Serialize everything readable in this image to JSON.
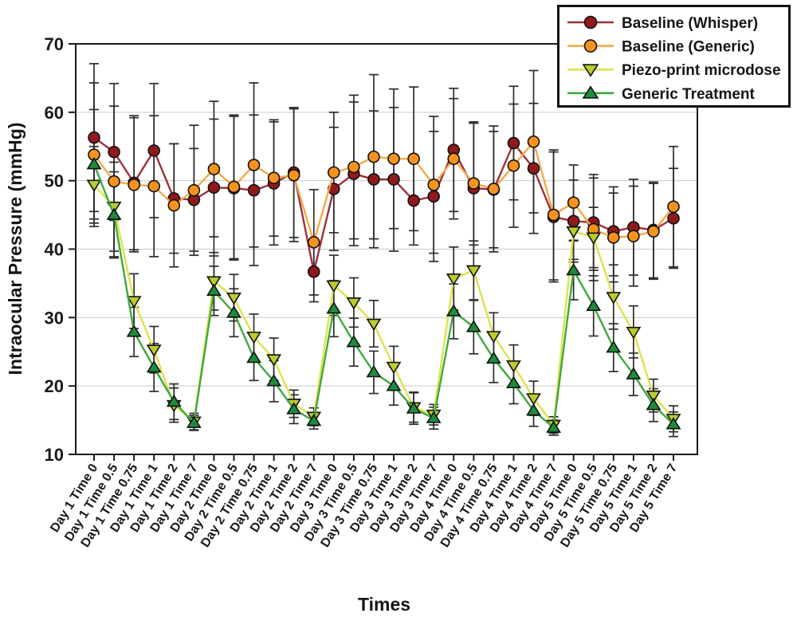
{
  "chart_data": {
    "type": "line",
    "title": "",
    "xlabel": "Times",
    "ylabel": "Intraocular Pressure (mmHg)",
    "ylim": [
      10,
      70
    ],
    "y_ticks": [
      10,
      20,
      30,
      40,
      50,
      60,
      70
    ],
    "grid": "horizontal",
    "legend_position": "top-right",
    "error_bar_color": "#2d2d2d",
    "categories": [
      "Day 1 Time 0",
      "Day 1 Time 0.5",
      "Day 1 Time 0.75",
      "Day 1 Time 1",
      "Day 1 Time 2",
      "Day 1 Time 7",
      "Day 2 Time 0",
      "Day 2 Time 0.5",
      "Day 2 Time 0.75",
      "Day 2 Time 1",
      "Day 2 Time 2",
      "Day 2 Time 7",
      "Day 3 Time 0",
      "Day 3 Time 0.5",
      "Day 3 Time 0.75",
      "Day 3 Time 1",
      "Day 3 Time 2",
      "Day 3 Time 7",
      "Day 4 Time 0",
      "Day 4 Time 0.5",
      "Day 4 Time 0.75",
      "Day 4 Time 1",
      "Day 4 Time 2",
      "Day 4 Time 7",
      "Day 5 Time 0",
      "Day 5 Time 0.5",
      "Day 5 Time 0.75",
      "Day 5 Time 1",
      "Day 5 Time 2",
      "Day 5 Time 7"
    ],
    "series": [
      {
        "name": "Baseline (Whisper)",
        "marker": "circle",
        "marker_color": "#8f1a1c",
        "line_color": "#9e3039",
        "values": [
          56.3,
          54.2,
          49.7,
          54.4,
          47.4,
          47.2,
          49.0,
          48.9,
          48.6,
          49.6,
          51.2,
          36.7,
          48.8,
          51.0,
          50.2,
          50.2,
          47.1,
          47.7,
          54.5,
          48.9,
          48.7,
          55.5,
          51.8,
          44.7,
          44.1,
          43.9,
          42.6,
          43.2,
          42.8,
          44.5
        ],
        "errors": [
          10.8,
          10.0,
          9.8,
          9.8,
          8.0,
          7.5,
          10.0,
          10.5,
          11.0,
          9.0,
          9.5,
          4.4,
          9.0,
          10.5,
          10.0,
          10.5,
          6.5,
          9.5,
          9.0,
          9.5,
          8.5,
          8.3,
          9.5,
          9.5,
          6.0,
          7.0,
          6.5,
          7.0,
          7.0,
          7.3
        ]
      },
      {
        "name": "Baseline (Generic)",
        "marker": "circle",
        "marker_color": "#f6921e",
        "line_color": "#f4a94c",
        "values": [
          53.8,
          49.9,
          49.4,
          49.2,
          46.4,
          48.6,
          51.7,
          49.1,
          52.3,
          50.4,
          50.8,
          41.0,
          51.2,
          52.0,
          53.5,
          53.2,
          53.2,
          49.4,
          53.2,
          49.6,
          48.8,
          52.2,
          55.7,
          45.0,
          46.8,
          42.9,
          41.7,
          41.9,
          42.6,
          46.2
        ],
        "errors": [
          10.5,
          11.0,
          9.8,
          10.3,
          9.0,
          9.5,
          9.9,
          10.5,
          12.0,
          8.5,
          9.7,
          7.7,
          8.8,
          10.5,
          12.0,
          10.2,
          10.5,
          10.0,
          8.8,
          9.0,
          9.2,
          9.0,
          10.4,
          9.5,
          5.5,
          7.5,
          6.5,
          7.3,
          7.0,
          8.8
        ]
      },
      {
        "name": "Piezo-print microdose",
        "marker": "triangle-down",
        "marker_color": "#bccb2f",
        "line_color": "#dee24a",
        "values": [
          49.4,
          46.2,
          32.4,
          25.3,
          17.2,
          14.8,
          35.3,
          32.9,
          27.2,
          23.9,
          17.4,
          15.5,
          34.7,
          32.2,
          29.1,
          22.8,
          16.9,
          15.8,
          35.7,
          36.9,
          27.3,
          23.0,
          18.2,
          14.3,
          42.6,
          41.7,
          33.0,
          27.9,
          18.6,
          15.2
        ],
        "errors": [
          5.6,
          6.5,
          4.0,
          3.4,
          2.5,
          1.2,
          4.2,
          3.4,
          3.3,
          3.1,
          2.0,
          1.3,
          4.4,
          3.6,
          3.4,
          3.0,
          2.2,
          1.5,
          4.6,
          4.3,
          3.4,
          3.0,
          2.5,
          1.2,
          4.1,
          4.4,
          4.7,
          3.8,
          2.4,
          1.9
        ]
      },
      {
        "name": "Generic Treatment",
        "marker": "triangle-up",
        "marker_color": "#1c8c3c",
        "line_color": "#3fa83f",
        "values": [
          52.4,
          45.0,
          27.9,
          22.7,
          17.7,
          14.6,
          33.9,
          30.7,
          24.1,
          20.7,
          16.6,
          14.9,
          31.3,
          26.4,
          22.0,
          20.0,
          16.7,
          15.3,
          30.9,
          28.6,
          24.0,
          20.4,
          16.4,
          13.9,
          36.9,
          31.7,
          25.6,
          21.7,
          17.2,
          14.4
        ],
        "errors": [
          8.0,
          6.3,
          3.6,
          3.5,
          2.6,
          1.1,
          3.6,
          3.5,
          3.3,
          3.0,
          2.1,
          1.2,
          4.1,
          3.5,
          3.1,
          2.8,
          2.3,
          1.6,
          4.0,
          3.9,
          3.5,
          3.0,
          2.3,
          1.1,
          4.3,
          4.4,
          3.5,
          3.1,
          2.4,
          1.8
        ]
      }
    ]
  }
}
